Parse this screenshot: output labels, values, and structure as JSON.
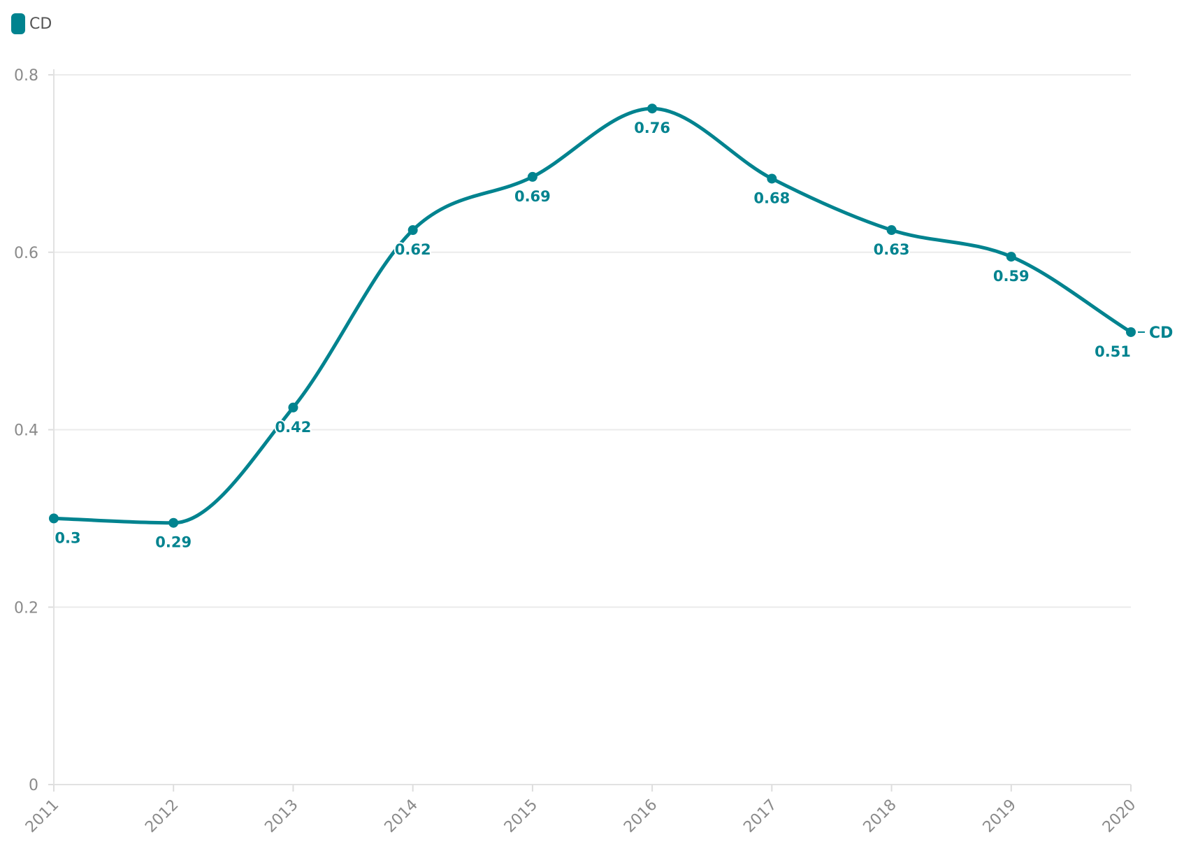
{
  "legend": {
    "label": "CD",
    "color": "#00838f"
  },
  "chart_data": {
    "type": "line",
    "title": "",
    "xlabel": "",
    "ylabel": "",
    "x": [
      "2011",
      "2012",
      "2013",
      "2014",
      "2015",
      "2016",
      "2017",
      "2018",
      "2019",
      "2020"
    ],
    "series": [
      {
        "name": "CD",
        "values": [
          0.3,
          0.295,
          0.425,
          0.625,
          0.685,
          0.762,
          0.683,
          0.625,
          0.595,
          0.51
        ],
        "labels": [
          "0.3",
          "0.29",
          "0.42",
          "0.62",
          "0.69",
          "0.76",
          "0.68",
          "0.63",
          "0.59",
          "0.51"
        ],
        "color": "#00838f"
      }
    ],
    "ylim": [
      0,
      0.8
    ],
    "yticks": [
      0,
      0.2,
      0.4,
      0.6,
      0.8
    ],
    "ytick_labels": [
      "0",
      "0.2",
      "0.4",
      "0.6",
      "0.8"
    ],
    "grid": true,
    "smooth": true,
    "legend_position": "top-left",
    "end_label": "CD"
  }
}
